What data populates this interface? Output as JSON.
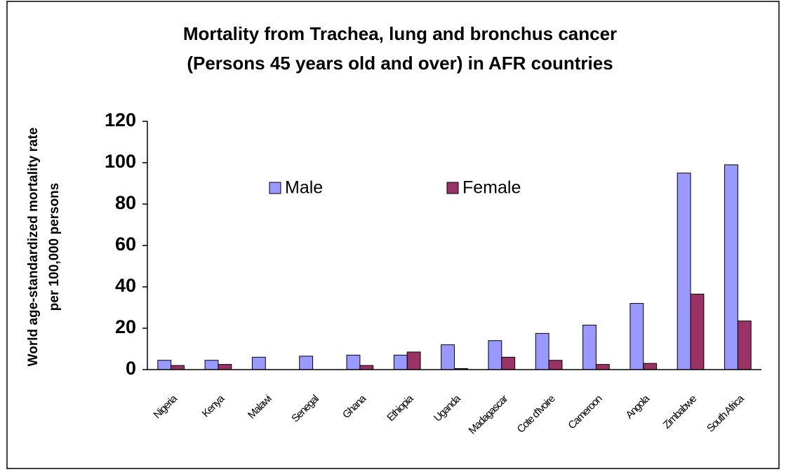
{
  "chart_data": {
    "type": "bar",
    "title": [
      "Mortality from Trachea, lung and bronchus cancer",
      "(Persons 45 years old and over) in AFR countries"
    ],
    "y_label": [
      "World age-standardized mortality rate",
      "per 100,000 persons"
    ],
    "categories": [
      "Nigeria",
      "Kenya",
      "Malawi",
      "Senegal",
      "Ghana",
      "Ethiopia",
      "Uganda",
      "Madagascar",
      "Cote d'Ivoire",
      "Cameroon",
      "Angola",
      "Zimbabwe",
      "South Africa"
    ],
    "series": [
      {
        "name": "Male",
        "color": "#9999ff",
        "values": [
          4.5,
          4.5,
          6,
          6.5,
          7,
          7,
          12,
          14,
          17.5,
          21.5,
          32,
          95,
          99
        ]
      },
      {
        "name": "Female",
        "color": "#993366",
        "values": [
          2,
          2.5,
          0,
          0,
          2,
          8.5,
          0.5,
          6,
          4.5,
          2.5,
          3,
          36.5,
          23.5
        ]
      }
    ],
    "ylim": [
      0,
      120
    ],
    "yticks": [
      0,
      20,
      40,
      60,
      80,
      100,
      120
    ],
    "grid": false
  }
}
